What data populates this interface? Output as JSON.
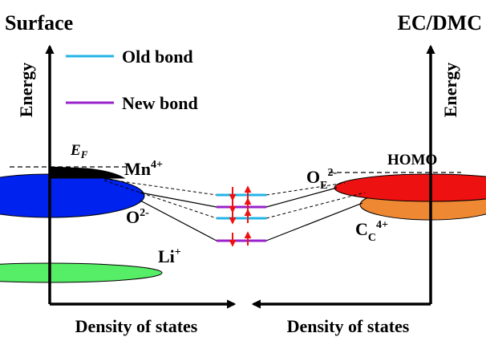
{
  "left_panel": {
    "title": "Surface",
    "y_axis_label": "Energy",
    "x_axis_label": "Density of states",
    "fermi_label": {
      "main": "E",
      "sub": "F"
    },
    "states": [
      {
        "ion": "Mn",
        "charge": "4+",
        "color": "#000000"
      },
      {
        "ion": "O",
        "charge": "2-",
        "color": "#0022ee"
      },
      {
        "ion": "Li",
        "charge": "+",
        "color": "#55ee66"
      }
    ]
  },
  "right_panel": {
    "title": "EC/DMC",
    "y_axis_label": "Energy",
    "x_axis_label": "Density of states",
    "homo_label": "HOMO",
    "states": [
      {
        "ion": "O",
        "subscript": "E",
        "charge": "2-",
        "color": "#ee1111"
      },
      {
        "ion": "C",
        "subscript": "C",
        "charge": "4+",
        "color": "#ee8833"
      }
    ]
  },
  "legend": [
    {
      "label": "Old bond",
      "color": "#22b4e6"
    },
    {
      "label": "New bond",
      "color": "#9922cc"
    }
  ],
  "bond_levels": {
    "old_color": "#22b4e6",
    "new_color": "#9922cc",
    "arrow_color": "#ee1111"
  }
}
